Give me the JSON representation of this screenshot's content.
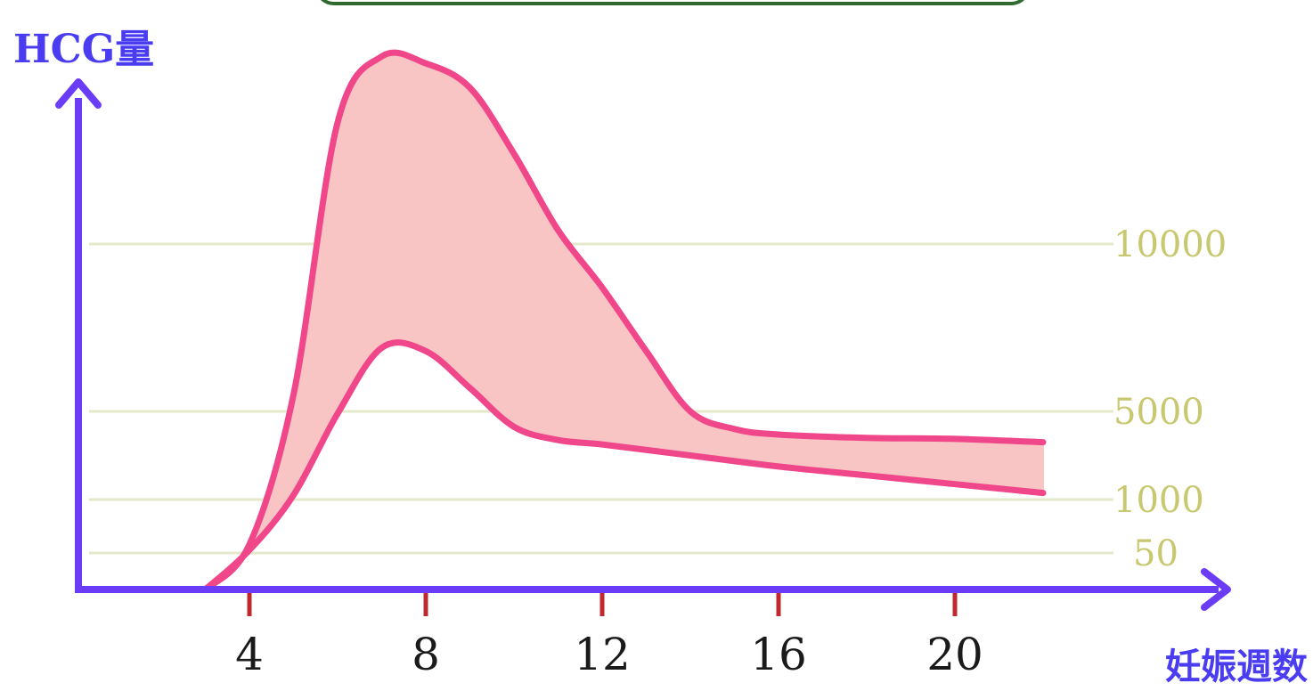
{
  "chart_data": {
    "type": "area",
    "title": "",
    "ylabel": "HCG量",
    "xlabel": "妊娠週数",
    "x_ticks": [
      4,
      8,
      12,
      16,
      20
    ],
    "y_ticks": [
      {
        "value": 10000,
        "label": "10000"
      },
      {
        "value": 5000,
        "label": "5000"
      },
      {
        "value": 1000,
        "label": "1000"
      },
      {
        "value": 50,
        "label": "50"
      }
    ],
    "grid": true,
    "colors": {
      "axis": "#6a3cf5",
      "curve": "#f0468a",
      "fill": "#f9c4c4",
      "grid": "#e6e8cc",
      "tick_mark": "#c0282e"
    },
    "upper_bound": [
      {
        "x": 3,
        "y": 0
      },
      {
        "x": 4,
        "y": 200
      },
      {
        "x": 5,
        "y": 5500
      },
      {
        "x": 6,
        "y": 13500
      },
      {
        "x": 7,
        "y": 15400
      },
      {
        "x": 8,
        "y": 15200
      },
      {
        "x": 9,
        "y": 14500
      },
      {
        "x": 10,
        "y": 12600
      },
      {
        "x": 11,
        "y": 10400
      },
      {
        "x": 12,
        "y": 8700
      },
      {
        "x": 13,
        "y": 6800
      },
      {
        "x": 14,
        "y": 5000
      },
      {
        "x": 15,
        "y": 4200
      },
      {
        "x": 16,
        "y": 3950
      },
      {
        "x": 18,
        "y": 3800
      },
      {
        "x": 20,
        "y": 3750
      },
      {
        "x": 22,
        "y": 3600
      }
    ],
    "lower_bound": [
      {
        "x": 3,
        "y": 0
      },
      {
        "x": 4,
        "y": 100
      },
      {
        "x": 5,
        "y": 1200
      },
      {
        "x": 6,
        "y": 4900
      },
      {
        "x": 7,
        "y": 6900
      },
      {
        "x": 8,
        "y": 6800
      },
      {
        "x": 9,
        "y": 5700
      },
      {
        "x": 10,
        "y": 4300
      },
      {
        "x": 11,
        "y": 3700
      },
      {
        "x": 12,
        "y": 3500
      },
      {
        "x": 14,
        "y": 3000
      },
      {
        "x": 16,
        "y": 2500
      },
      {
        "x": 18,
        "y": 2100
      },
      {
        "x": 20,
        "y": 1700
      },
      {
        "x": 22,
        "y": 1300
      }
    ]
  }
}
